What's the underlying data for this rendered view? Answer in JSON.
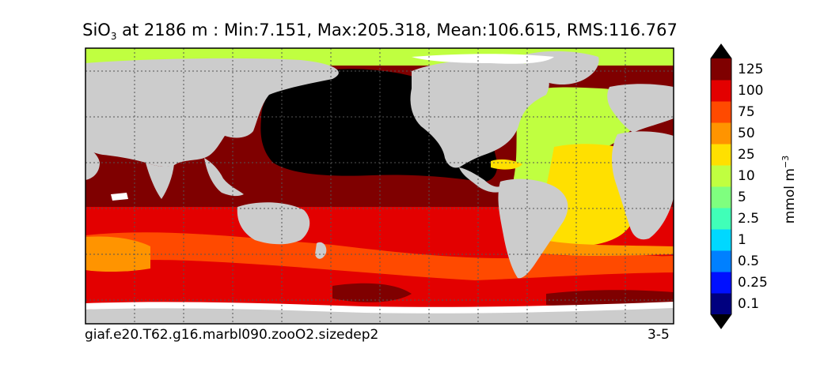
{
  "title": {
    "variable": "SiO",
    "subscript": "3",
    "rest": " at 2186 m : Min:7.151, Max:205.318, Mean:106.615, RMS:116.767"
  },
  "footer": {
    "case_name": "giaf.e20.T62.g16.marbl090.zooO2.sizedep2",
    "years": "3-5"
  },
  "colorbar": {
    "units_main": "mmol m",
    "units_exp": "−3",
    "labels": [
      "0.1",
      "0.25",
      "0.5",
      "1",
      "2.5",
      "5",
      "10",
      "25",
      "50",
      "75",
      "100",
      "125"
    ],
    "colors": [
      "#00007f",
      "#0010ff",
      "#0080ff",
      "#00d8ff",
      "#40ffb8",
      "#7fff7f",
      "#c0ff40",
      "#ffe000",
      "#ff9400",
      "#ff4a00",
      "#e30000",
      "#7f0000"
    ],
    "under_color": "#000000",
    "over_color": "#000000"
  },
  "map": {
    "land_color": "#cccccc",
    "missing_color": "#ffffff"
  }
}
